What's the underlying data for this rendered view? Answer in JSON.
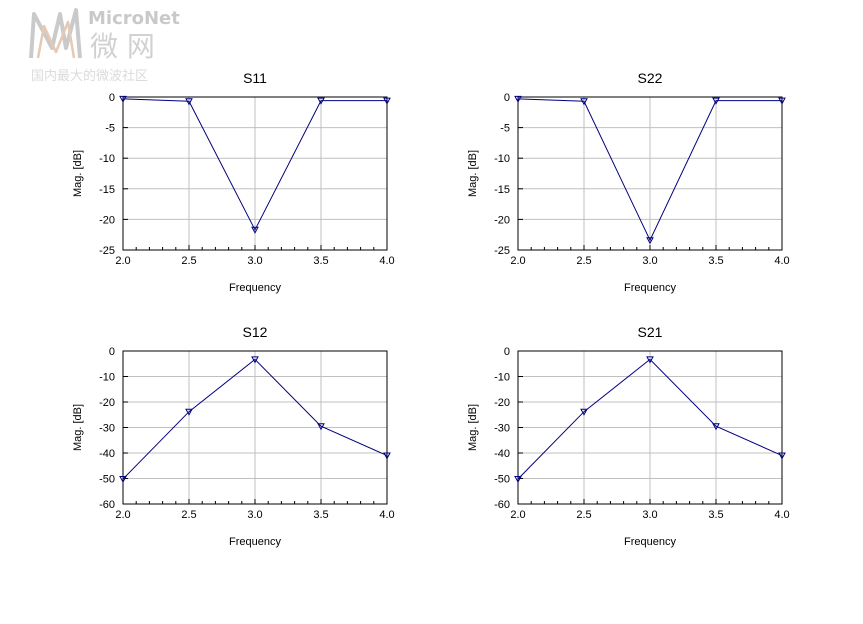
{
  "watermark": {
    "brand": "MicroNet",
    "brand_cn": "微 网",
    "tagline": "国内最大的微波社区"
  },
  "chart_data": [
    {
      "type": "line",
      "title": "S11",
      "xlabel": "Frequency",
      "ylabel": "Mag. [dB]",
      "x": [
        2.0,
        2.5,
        3.0,
        3.5,
        4.0
      ],
      "series": [
        {
          "values": [
            -0.3,
            -0.7,
            -21.7,
            -0.6,
            -0.6
          ]
        }
      ],
      "xlim": [
        2.0,
        4.0
      ],
      "ylim": [
        -25,
        0
      ],
      "xticks": [
        "2.0",
        "2.5",
        "3.0",
        "3.5",
        "4.0"
      ],
      "yticks": [
        "0",
        "-5",
        "-10",
        "-15",
        "-20",
        "-25"
      ],
      "ytick_values": [
        0,
        -5,
        -10,
        -15,
        -20,
        -25
      ],
      "grid": true,
      "color": "#000080"
    },
    {
      "type": "line",
      "title": "S22",
      "xlabel": "Frequency",
      "ylabel": "Mag. [dB]",
      "x": [
        2.0,
        2.5,
        3.0,
        3.5,
        4.0
      ],
      "series": [
        {
          "values": [
            -0.3,
            -0.7,
            -23.4,
            -0.6,
            -0.6
          ]
        }
      ],
      "xlim": [
        2.0,
        4.0
      ],
      "ylim": [
        -25,
        0
      ],
      "xticks": [
        "2.0",
        "2.5",
        "3.0",
        "3.5",
        "4.0"
      ],
      "yticks": [
        "0",
        "-5",
        "-10",
        "-15",
        "-20",
        "-25"
      ],
      "ytick_values": [
        0,
        -5,
        -10,
        -15,
        -20,
        -25
      ],
      "grid": true,
      "color": "#000080"
    },
    {
      "type": "line",
      "title": "S12",
      "xlabel": "Frequency",
      "ylabel": "Mag. [dB]",
      "x": [
        2.0,
        2.5,
        3.0,
        3.5,
        4.0
      ],
      "series": [
        {
          "values": [
            -50.2,
            -23.8,
            -3.3,
            -29.5,
            -41.0
          ]
        }
      ],
      "xlim": [
        2.0,
        4.0
      ],
      "ylim": [
        -60,
        0
      ],
      "xticks": [
        "2.0",
        "2.5",
        "3.0",
        "3.5",
        "4.0"
      ],
      "yticks": [
        "0",
        "-10",
        "-20",
        "-30",
        "-40",
        "-50",
        "-60"
      ],
      "ytick_values": [
        0,
        -10,
        -20,
        -30,
        -40,
        -50,
        -60
      ],
      "grid": true,
      "color": "#000080"
    },
    {
      "type": "line",
      "title": "S21",
      "xlabel": "Frequency",
      "ylabel": "Mag. [dB]",
      "x": [
        2.0,
        2.5,
        3.0,
        3.5,
        4.0
      ],
      "series": [
        {
          "values": [
            -50.2,
            -23.8,
            -3.3,
            -29.5,
            -41.0
          ]
        }
      ],
      "xlim": [
        2.0,
        4.0
      ],
      "ylim": [
        -60,
        0
      ],
      "xticks": [
        "2.0",
        "2.5",
        "3.0",
        "3.5",
        "4.0"
      ],
      "yticks": [
        "0",
        "-10",
        "-20",
        "-30",
        "-40",
        "-50",
        "-60"
      ],
      "ytick_values": [
        0,
        -10,
        -20,
        -30,
        -40,
        -50,
        -60
      ],
      "grid": true,
      "color": "#000080"
    }
  ]
}
